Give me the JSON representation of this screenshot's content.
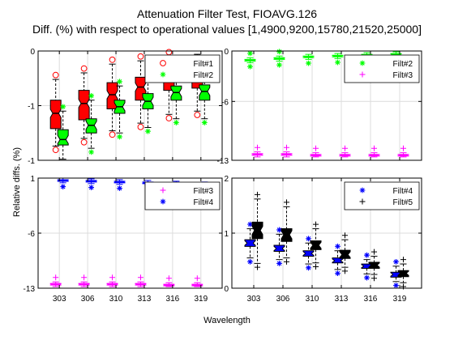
{
  "figure": {
    "title_line1": "Attenuation Filter Test, FIOAVG.126",
    "title_line2": "Diff. (%) with respect to operational values [1,4900,9200,15780,21520,25000]",
    "ylabel": "Relative diffs. (%)",
    "xlabel": "Wavelength"
  },
  "chart_data": [
    {
      "type": "box",
      "categories": [
        "303",
        "306",
        "310",
        "313",
        "316",
        "319"
      ],
      "ylim": [
        -1,
        0
      ],
      "yticks": [
        "-1",
        "-1",
        "0"
      ],
      "ytick_values": [
        -1,
        -0.5,
        0
      ],
      "grid": true,
      "legend": {
        "position": "top-right",
        "entries": [
          {
            "label": "Filt#1",
            "marker": "circle",
            "color": "#ff0000"
          },
          {
            "label": "Filt#2",
            "marker": "asterisk",
            "color": "#00ff00"
          }
        ]
      },
      "series": [
        {
          "name": "Filt#1",
          "color": "#ff0000",
          "median": [
            -0.57,
            -0.48,
            -0.4,
            -0.33,
            -0.24,
            -0.22
          ],
          "q1": [
            -0.71,
            -0.63,
            -0.53,
            -0.45,
            -0.36,
            -0.34
          ],
          "q3": [
            -0.45,
            -0.36,
            -0.29,
            -0.24,
            -0.17,
            -0.15
          ],
          "lower_whisker": [
            -0.87,
            -0.8,
            -0.73,
            -0.66,
            -0.58,
            -0.55
          ],
          "upper_whisker": [
            -0.26,
            -0.2,
            -0.12,
            -0.09,
            -0.05,
            -0.03
          ]
        },
        {
          "name": "Filt#2",
          "color": "#00ff00",
          "median": [
            -0.81,
            -0.68,
            -0.51,
            -0.46,
            -0.38,
            -0.37
          ],
          "q1": [
            -0.86,
            -0.75,
            -0.57,
            -0.53,
            -0.45,
            -0.45
          ],
          "q3": [
            -0.72,
            -0.62,
            -0.45,
            -0.39,
            -0.32,
            -0.31
          ],
          "lower_whisker": [
            -0.99,
            -0.89,
            -0.75,
            -0.7,
            -0.62,
            -0.62
          ],
          "upper_whisker": [
            -0.55,
            -0.45,
            -0.32,
            -0.26,
            -0.18,
            -0.17
          ]
        }
      ]
    },
    {
      "type": "box",
      "categories": [
        "303",
        "306",
        "310",
        "313",
        "316",
        "319"
      ],
      "ylim": [
        -13,
        0
      ],
      "yticks": [
        "-13",
        "-6",
        "0"
      ],
      "ytick_values": [
        -13,
        -6,
        0
      ],
      "grid": true,
      "legend": {
        "position": "top-right",
        "entries": [
          {
            "label": "Filt#2",
            "marker": "asterisk",
            "color": "#00ff00"
          },
          {
            "label": "Filt#3",
            "marker": "plus",
            "color": "#ff00ff"
          }
        ]
      },
      "series": [
        {
          "name": "Filt#2",
          "color": "#00ff00",
          "median": [
            -1.1,
            -0.9,
            -0.7,
            -0.6,
            -0.5,
            -0.4
          ],
          "q1": [
            -1.2,
            -1.0,
            -0.8,
            -0.7,
            -0.6,
            -0.5
          ],
          "q3": [
            -1.0,
            -0.8,
            -0.6,
            -0.5,
            -0.4,
            -0.3
          ],
          "lower_whisker": [
            -1.4,
            -1.2,
            -1.0,
            -0.9,
            -0.8,
            -0.7
          ],
          "upper_whisker": [
            -0.8,
            -0.6,
            -0.4,
            -0.3,
            -0.2,
            -0.1
          ]
        },
        {
          "name": "Filt#3",
          "color": "#ff00ff",
          "median": [
            -12.3,
            -12.3,
            -12.4,
            -12.4,
            -12.4,
            -12.4
          ],
          "q1": [
            -12.4,
            -12.4,
            -12.5,
            -12.5,
            -12.5,
            -12.5
          ],
          "q3": [
            -12.2,
            -12.2,
            -12.3,
            -12.3,
            -12.3,
            -12.3
          ],
          "lower_whisker": [
            -12.6,
            -12.6,
            -12.6,
            -12.6,
            -12.6,
            -12.6
          ],
          "upper_whisker": [
            -12.0,
            -12.0,
            -12.1,
            -12.1,
            -12.1,
            -12.1
          ]
        }
      ]
    },
    {
      "type": "box",
      "categories": [
        "303",
        "306",
        "310",
        "313",
        "316",
        "319"
      ],
      "ylim": [
        -13,
        1
      ],
      "yticks": [
        "-13",
        "-6",
        "1"
      ],
      "ytick_values": [
        -13,
        -6,
        1
      ],
      "grid": true,
      "legend": {
        "position": "top-right",
        "entries": [
          {
            "label": "Filt#3",
            "marker": "plus",
            "color": "#ff00ff"
          },
          {
            "label": "Filt#4",
            "marker": "asterisk",
            "color": "#0000ff"
          }
        ]
      },
      "series": [
        {
          "name": "Filt#3",
          "color": "#ff00ff",
          "median": [
            -12.5,
            -12.5,
            -12.5,
            -12.5,
            -12.6,
            -12.6
          ],
          "q1": [
            -12.6,
            -12.6,
            -12.6,
            -12.6,
            -12.7,
            -12.7
          ],
          "q3": [
            -12.4,
            -12.4,
            -12.4,
            -12.4,
            -12.5,
            -12.5
          ],
          "lower_whisker": [
            -12.8,
            -12.8,
            -12.8,
            -12.8,
            -12.8,
            -12.8
          ],
          "upper_whisker": [
            -12.2,
            -12.2,
            -12.2,
            -12.2,
            -12.3,
            -12.3
          ]
        },
        {
          "name": "Filt#4",
          "color": "#0000ff",
          "median": [
            0.7,
            0.6,
            0.5,
            0.4,
            0.3,
            0.2
          ],
          "q1": [
            0.6,
            0.5,
            0.4,
            0.3,
            0.2,
            0.1
          ],
          "q3": [
            0.8,
            0.7,
            0.6,
            0.5,
            0.4,
            0.3
          ],
          "lower_whisker": [
            0.4,
            0.3,
            0.2,
            0.1,
            0.0,
            -0.1
          ],
          "upper_whisker": [
            1.0,
            0.9,
            0.8,
            0.7,
            0.6,
            0.5
          ]
        }
      ]
    },
    {
      "type": "box",
      "categories": [
        "303",
        "306",
        "310",
        "313",
        "316",
        "319"
      ],
      "ylim": [
        0,
        2
      ],
      "yticks": [
        "0",
        "1",
        "2"
      ],
      "ytick_values": [
        0,
        1,
        2
      ],
      "grid": true,
      "legend": {
        "position": "top-right",
        "entries": [
          {
            "label": "Filt#4",
            "marker": "asterisk",
            "color": "#0000ff"
          },
          {
            "label": "Filt#5",
            "marker": "plus",
            "color": "#000000"
          }
        ]
      },
      "series": [
        {
          "name": "Filt#4",
          "color": "#0000ff",
          "median": [
            0.82,
            0.72,
            0.63,
            0.5,
            0.4,
            0.25
          ],
          "q1": [
            0.76,
            0.67,
            0.58,
            0.46,
            0.36,
            0.2
          ],
          "q3": [
            0.88,
            0.78,
            0.68,
            0.55,
            0.44,
            0.29
          ],
          "lower_whisker": [
            0.55,
            0.52,
            0.44,
            0.34,
            0.26,
            0.12
          ],
          "upper_whisker": [
            1.08,
            0.98,
            0.82,
            0.68,
            0.52,
            0.4
          ]
        },
        {
          "name": "Filt#5",
          "color": "#000000",
          "median": [
            1.05,
            0.97,
            0.78,
            0.61,
            0.42,
            0.27
          ],
          "q1": [
            0.9,
            0.85,
            0.7,
            0.54,
            0.36,
            0.21
          ],
          "q3": [
            1.2,
            1.08,
            0.86,
            0.69,
            0.47,
            0.32
          ],
          "lower_whisker": [
            0.45,
            0.55,
            0.46,
            0.38,
            0.25,
            0.1
          ],
          "upper_whisker": [
            1.62,
            1.48,
            1.08,
            0.88,
            0.58,
            0.44
          ]
        }
      ]
    }
  ]
}
